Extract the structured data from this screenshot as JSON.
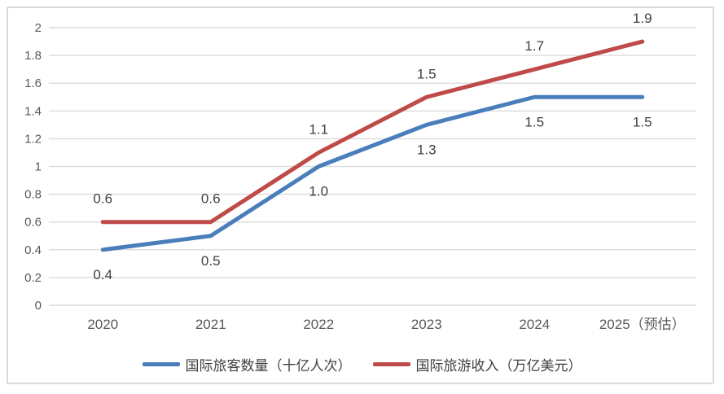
{
  "chart_data": {
    "type": "line",
    "title": "",
    "categories": [
      "2020",
      "2021",
      "2022",
      "2023",
      "2024",
      "2025（预估）"
    ],
    "series": [
      {
        "name": "国际旅客数量（十亿人次）",
        "color": "#4a7ebb",
        "values": [
          0.4,
          0.5,
          1.0,
          1.3,
          1.5,
          1.5
        ],
        "labels": [
          "0.4",
          "0.5",
          "1.0",
          "1.3",
          "1.5",
          "1.5"
        ],
        "label_position": "below"
      },
      {
        "name": "国际旅游收入（万亿美元）",
        "color": "#be4b48",
        "values": [
          0.6,
          0.6,
          1.1,
          1.5,
          1.7,
          1.9
        ],
        "labels": [
          "0.6",
          "0.6",
          "1.1",
          "1.5",
          "1.7",
          "1.9"
        ],
        "label_position": "above"
      }
    ],
    "y_axis": {
      "min": 0,
      "max": 2,
      "step": 0.2,
      "tick_labels": [
        "0",
        "0.2",
        "0.4",
        "0.6",
        "0.8",
        "1",
        "1.2",
        "1.4",
        "1.6",
        "1.8",
        "2"
      ]
    },
    "grid": true,
    "legend_position": "bottom",
    "colors": {
      "gridline": "#dcdcdc",
      "axis_tick_text": "#595959",
      "data_label_text": "#404040",
      "frame_border": "#d9d9d9"
    }
  }
}
